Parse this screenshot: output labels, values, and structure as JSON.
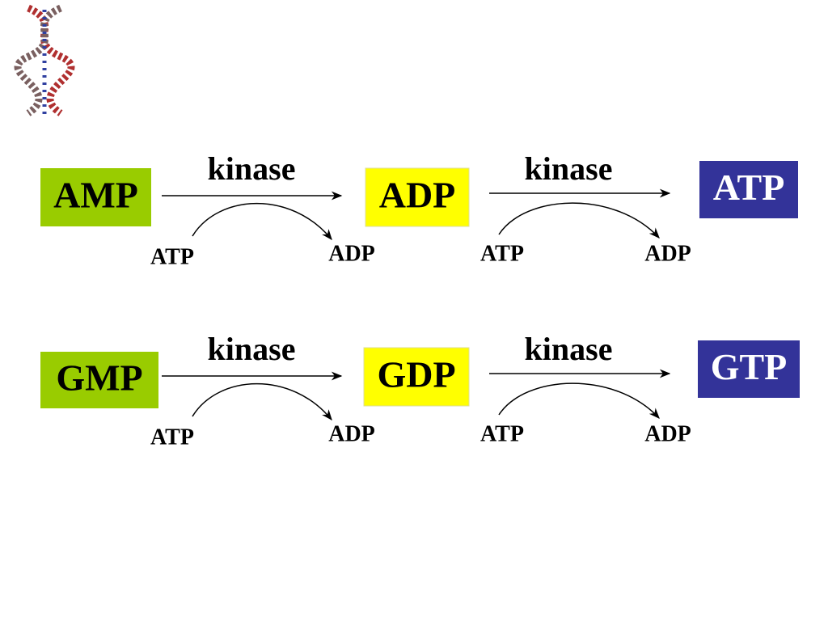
{
  "pathways": [
    {
      "nodes": [
        {
          "label": "AMP"
        },
        {
          "label": "ADP"
        },
        {
          "label": "ATP"
        }
      ],
      "steps": [
        {
          "enzyme": "kinase",
          "cofactor_in": "ATP",
          "cofactor_out": "ADP"
        },
        {
          "enzyme": "kinase",
          "cofactor_in": "ATP",
          "cofactor_out": "ADP"
        }
      ]
    },
    {
      "nodes": [
        {
          "label": "GMP"
        },
        {
          "label": "GDP"
        },
        {
          "label": "GTP"
        }
      ],
      "steps": [
        {
          "enzyme": "kinase",
          "cofactor_in": "ATP",
          "cofactor_out": "ADP"
        },
        {
          "enzyme": "kinase",
          "cofactor_in": "ATP",
          "cofactor_out": "ADP"
        }
      ]
    }
  ]
}
